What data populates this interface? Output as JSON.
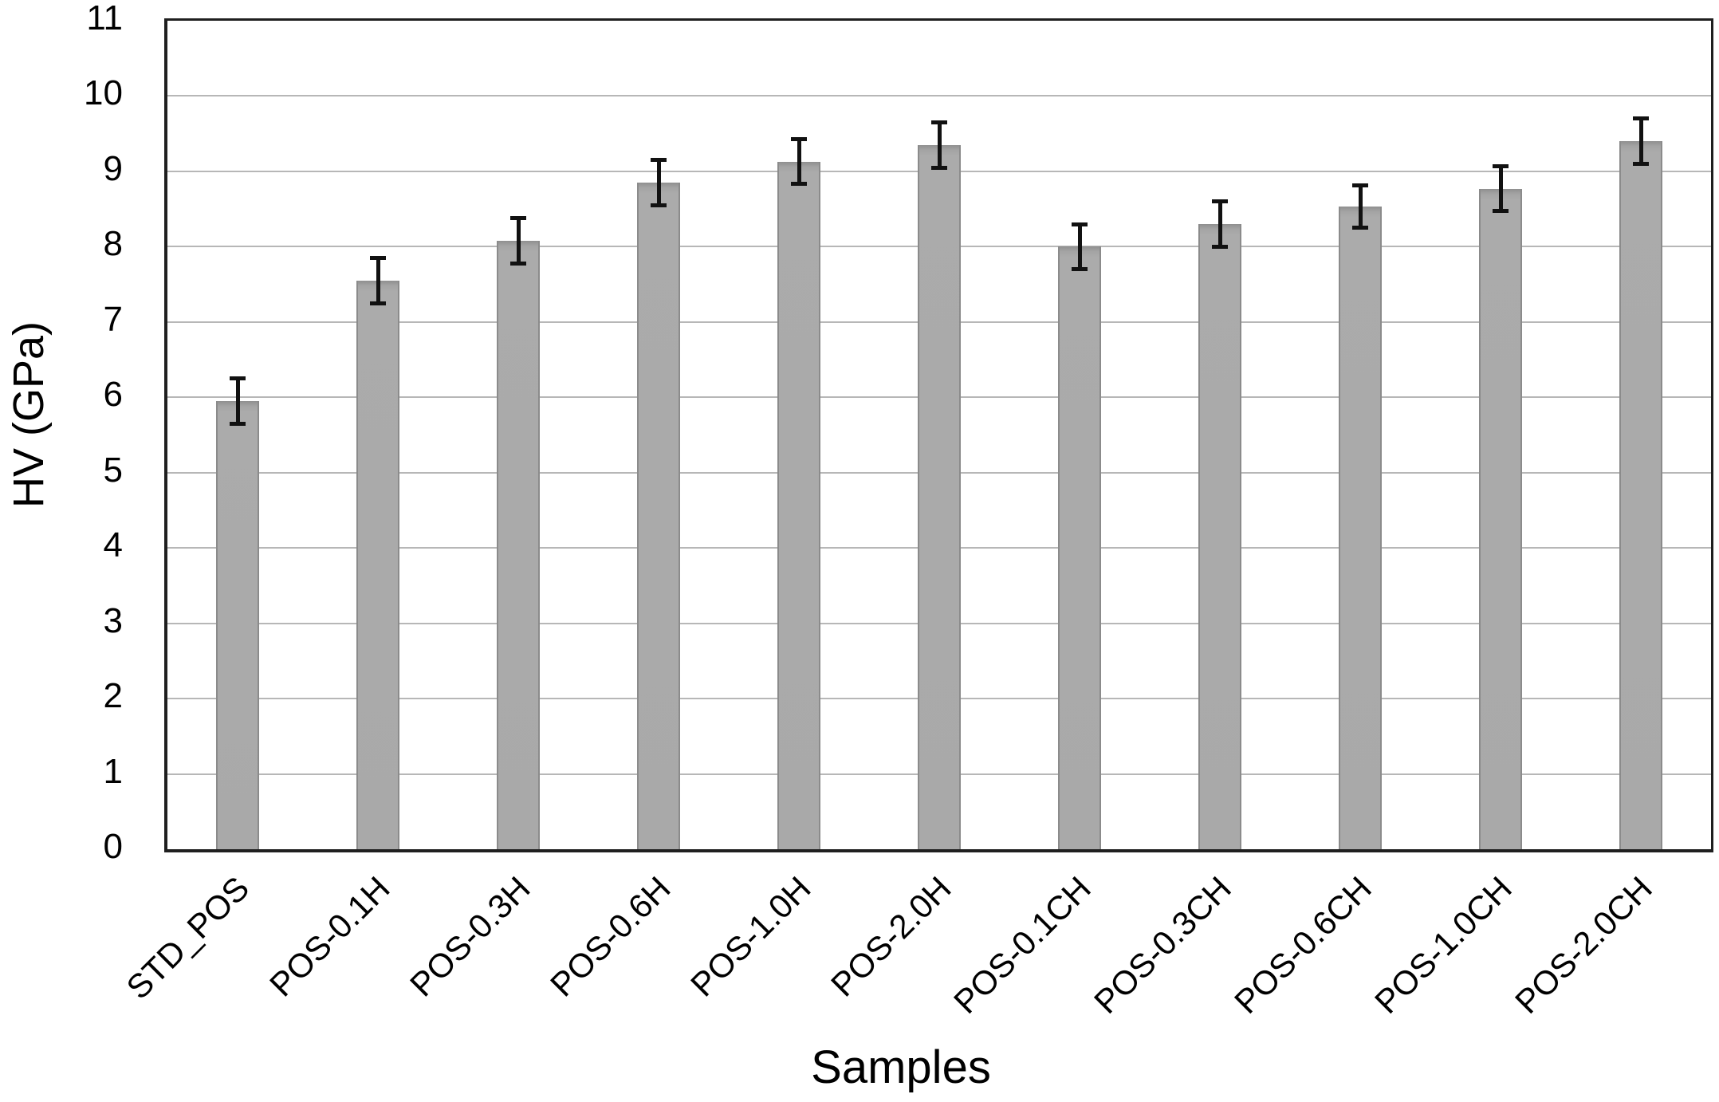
{
  "chart_data": {
    "type": "bar",
    "title": "",
    "xlabel": "Samples",
    "ylabel": "HV (GPa)",
    "ylim": [
      0,
      11
    ],
    "yticks": [
      0,
      1,
      2,
      3,
      4,
      5,
      6,
      7,
      8,
      9,
      10,
      11
    ],
    "grid": "horizontal",
    "legend": "none",
    "bar_color": "#a9a9a9",
    "bar_border_color": "#8b8b8b",
    "error_bar_color": "#111111",
    "gridline_color": "#b7b7b7",
    "categories": [
      "STD_POS",
      "POS-0.1H",
      "POS-0.3H",
      "POS-0.6H",
      "POS-1.0H",
      "POS-2.0H",
      "POS-0.1CH",
      "POS-0.3CH",
      "POS-0.6CH",
      "POS-1.0CH",
      "POS-2.0CH"
    ],
    "values": [
      5.95,
      7.55,
      8.08,
      8.85,
      9.13,
      9.35,
      8.0,
      8.3,
      8.53,
      8.77,
      9.4
    ],
    "errors": [
      0.3,
      0.3,
      0.3,
      0.3,
      0.3,
      0.3,
      0.3,
      0.3,
      0.28,
      0.3,
      0.3
    ]
  }
}
